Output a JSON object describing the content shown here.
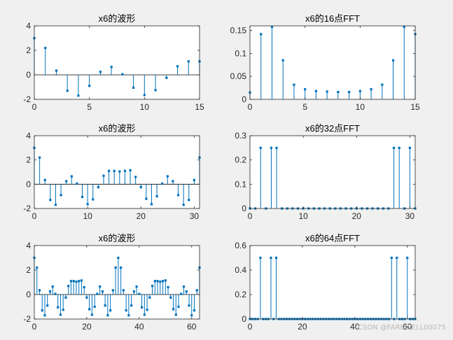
{
  "watermark": "CSDN @FAREWELL00075",
  "chart_data": [
    {
      "type": "stem",
      "title": "x6的波形",
      "x": [
        0,
        1,
        2,
        3,
        4,
        5,
        6,
        7,
        8,
        9,
        10,
        11,
        12,
        13,
        14,
        15
      ],
      "values": [
        3.0,
        2.2,
        0.35,
        -1.3,
        -1.7,
        -0.9,
        0.25,
        0.65,
        0.05,
        -1.05,
        -1.65,
        -1.25,
        -0.25,
        0.7,
        1.1,
        1.1
      ],
      "xlim": [
        0,
        15
      ],
      "ylim": [
        -2,
        4
      ],
      "xticks": [
        0,
        5,
        10,
        15
      ],
      "yticks": [
        -2,
        0,
        2,
        4
      ],
      "xtick_labels": [
        "0",
        "5",
        "10",
        "15"
      ],
      "ytick_labels": [
        "-2",
        "0",
        "2",
        "4"
      ],
      "color": "#0072bd"
    },
    {
      "type": "stem",
      "title": "x6的16点FFT",
      "x": [
        0,
        1,
        2,
        3,
        4,
        5,
        6,
        7,
        8,
        9,
        10,
        11,
        12,
        13,
        14,
        15
      ],
      "values": [
        0.015,
        0.142,
        0.158,
        0.085,
        0.032,
        0.022,
        0.018,
        0.017,
        0.016,
        0.016,
        0.018,
        0.022,
        0.032,
        0.085,
        0.158,
        0.142
      ],
      "xlim": [
        0,
        15
      ],
      "ylim": [
        0,
        0.16
      ],
      "xticks": [
        0,
        5,
        10,
        15
      ],
      "yticks": [
        0,
        0.05,
        0.1,
        0.15
      ],
      "xtick_labels": [
        "0",
        "5",
        "10",
        "15"
      ],
      "ytick_labels": [
        "0",
        "0.05",
        "0.1",
        "0.15"
      ],
      "color": "#0072bd"
    },
    {
      "type": "stem",
      "title": "x6的波形",
      "x": [
        0,
        1,
        2,
        3,
        4,
        5,
        6,
        7,
        8,
        9,
        10,
        11,
        12,
        13,
        14,
        15,
        16,
        17,
        18,
        19,
        20,
        21,
        22,
        23,
        24,
        25,
        26,
        27,
        28,
        29,
        30,
        31
      ],
      "values": [
        3.0,
        2.2,
        0.35,
        -1.3,
        -1.7,
        -0.9,
        0.25,
        0.65,
        0.05,
        -1.05,
        -1.65,
        -1.25,
        -0.25,
        0.7,
        1.1,
        1.1,
        1.05,
        1.1,
        1.15,
        0.6,
        -0.25,
        -1.2,
        -1.65,
        -1.0,
        0.05,
        0.65,
        0.25,
        -0.9,
        -1.7,
        -1.3,
        0.35,
        2.2
      ],
      "xlim": [
        0,
        31
      ],
      "ylim": [
        -2,
        4
      ],
      "xticks": [
        0,
        10,
        20,
        30
      ],
      "yticks": [
        -2,
        0,
        2,
        4
      ],
      "xtick_labels": [
        "0",
        "10",
        "20",
        "30"
      ],
      "ytick_labels": [
        "-2",
        "0",
        "2",
        "4"
      ],
      "color": "#0072bd"
    },
    {
      "type": "stem",
      "title": "x6的32点FFT",
      "x": [
        0,
        1,
        2,
        3,
        4,
        5,
        6,
        7,
        8,
        9,
        10,
        11,
        12,
        13,
        14,
        15,
        16,
        17,
        18,
        19,
        20,
        21,
        22,
        23,
        24,
        25,
        26,
        27,
        28,
        29,
        30,
        31
      ],
      "values": [
        0,
        0,
        0.25,
        0,
        0.25,
        0.25,
        0,
        0,
        0,
        0,
        0,
        0,
        0,
        0,
        0,
        0,
        0,
        0,
        0,
        0,
        0,
        0,
        0,
        0,
        0,
        0,
        0,
        0.25,
        0.25,
        0,
        0.25,
        0
      ],
      "xlim": [
        0,
        31
      ],
      "ylim": [
        0,
        0.3
      ],
      "xticks": [
        0,
        10,
        20,
        30
      ],
      "yticks": [
        0,
        0.1,
        0.2,
        0.3
      ],
      "xtick_labels": [
        "0",
        "10",
        "20",
        "30"
      ],
      "ytick_labels": [
        "0",
        "0.1",
        "0.2",
        "0.3"
      ],
      "color": "#0072bd"
    },
    {
      "type": "stem",
      "title": "x6的波形",
      "x": [
        0,
        1,
        2,
        3,
        4,
        5,
        6,
        7,
        8,
        9,
        10,
        11,
        12,
        13,
        14,
        15,
        16,
        17,
        18,
        19,
        20,
        21,
        22,
        23,
        24,
        25,
        26,
        27,
        28,
        29,
        30,
        31,
        32,
        33,
        34,
        35,
        36,
        37,
        38,
        39,
        40,
        41,
        42,
        43,
        44,
        45,
        46,
        47,
        48,
        49,
        50,
        51,
        52,
        53,
        54,
        55,
        56,
        57,
        58,
        59,
        60,
        61,
        62,
        63
      ],
      "values": [
        3.0,
        2.2,
        0.35,
        -1.3,
        -1.7,
        -0.9,
        0.25,
        0.65,
        0.05,
        -1.05,
        -1.65,
        -1.25,
        -0.25,
        0.7,
        1.1,
        1.1,
        1.05,
        1.1,
        1.15,
        0.6,
        -0.25,
        -1.2,
        -1.65,
        -1.0,
        0.05,
        0.65,
        0.25,
        -0.9,
        -1.7,
        -1.3,
        0.35,
        2.2,
        3.0,
        2.2,
        0.35,
        -1.3,
        -1.7,
        -0.9,
        0.25,
        0.65,
        0.05,
        -1.05,
        -1.65,
        -1.25,
        -0.25,
        0.7,
        1.1,
        1.1,
        1.05,
        1.1,
        1.15,
        0.6,
        -0.25,
        -1.2,
        -1.65,
        -1.0,
        0.05,
        0.65,
        0.25,
        -0.9,
        -1.7,
        -1.3,
        0.35,
        2.2
      ],
      "xlim": [
        0,
        63
      ],
      "ylim": [
        -2,
        4
      ],
      "xticks": [
        0,
        20,
        40,
        60
      ],
      "yticks": [
        -2,
        0,
        2,
        4
      ],
      "xtick_labels": [
        "0",
        "20",
        "40",
        "60"
      ],
      "ytick_labels": [
        "-2",
        "0",
        "2",
        "4"
      ],
      "color": "#0072bd"
    },
    {
      "type": "stem",
      "title": "x6的64点FFT",
      "x": [
        0,
        1,
        2,
        3,
        4,
        5,
        6,
        7,
        8,
        9,
        10,
        11,
        12,
        13,
        14,
        15,
        16,
        17,
        18,
        19,
        20,
        21,
        22,
        23,
        24,
        25,
        26,
        27,
        28,
        29,
        30,
        31,
        32,
        33,
        34,
        35,
        36,
        37,
        38,
        39,
        40,
        41,
        42,
        43,
        44,
        45,
        46,
        47,
        48,
        49,
        50,
        51,
        52,
        53,
        54,
        55,
        56,
        57,
        58,
        59,
        60,
        61,
        62,
        63
      ],
      "values": [
        0,
        0,
        0,
        0,
        0.5,
        0,
        0,
        0,
        0.5,
        0,
        0.5,
        0,
        0,
        0,
        0,
        0,
        0,
        0,
        0,
        0,
        0,
        0,
        0,
        0,
        0,
        0,
        0,
        0,
        0,
        0,
        0,
        0,
        0,
        0,
        0,
        0,
        0,
        0,
        0,
        0,
        0,
        0,
        0,
        0,
        0,
        0,
        0,
        0,
        0,
        0,
        0,
        0,
        0,
        0,
        0.5,
        0,
        0.5,
        0,
        0,
        0,
        0.5,
        0,
        0,
        0
      ],
      "xlim": [
        0,
        63
      ],
      "ylim": [
        0,
        0.6
      ],
      "xticks": [
        0,
        20,
        40,
        60
      ],
      "yticks": [
        0,
        0.2,
        0.4,
        0.6
      ],
      "xtick_labels": [
        "0",
        "20",
        "40",
        "60"
      ],
      "ytick_labels": [
        "0",
        "0.2",
        "0.4",
        "0.6"
      ],
      "color": "#0072bd"
    }
  ]
}
